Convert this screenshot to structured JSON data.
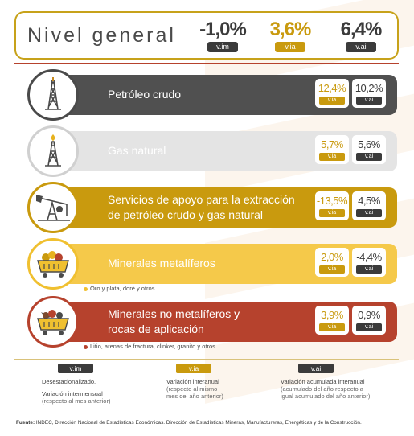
{
  "colors": {
    "vim": "#3b3b3b",
    "via": "#c99a0e",
    "vai": "#3b3b3b",
    "accent_red": "#b6422d",
    "gold": "#c7a21a"
  },
  "header": {
    "title": "Nivel general",
    "metrics": [
      {
        "value": "-1,0%",
        "tag": "v.im",
        "color": "#3b3b3b"
      },
      {
        "value": "3,6%",
        "tag": "v.ia",
        "color": "#c99a0e"
      },
      {
        "value": "6,4%",
        "tag": "v.ai",
        "color": "#3b3b3b"
      }
    ]
  },
  "rows": [
    {
      "label": "Petróleo crudo",
      "icon": "oil-derrick-icon",
      "via": "12,4%",
      "vai": "10,2%",
      "via_tag": "v.ia",
      "vai_tag": "v.ai",
      "note": ""
    },
    {
      "label": "Gas natural",
      "icon": "gas-derrick-icon",
      "via": "5,7%",
      "vai": "5,6%",
      "via_tag": "v.ia",
      "vai_tag": "v.ai",
      "note": ""
    },
    {
      "label": "Servicios de apoyo para la extracción de petróleo crudo y gas natural",
      "label_line1": "Servicios de apoyo para la extracción",
      "label_line2": "de petróleo crudo y gas natural",
      "icon": "pumpjack-icon",
      "via": "-13,5%",
      "vai": "4,5%",
      "via_tag": "v.ia",
      "vai_tag": "v.ai",
      "note": ""
    },
    {
      "label": "Minerales metalíferos",
      "icon": "mine-cart-gold-icon",
      "via": "2,0%",
      "vai": "-4,4%",
      "via_tag": "v.ia",
      "vai_tag": "v.ai",
      "note": "Oro y plata, doré y otros"
    },
    {
      "label": "Minerales no metalíferos y rocas de aplicación",
      "label_line1": "Minerales no metalíferos y",
      "label_line2": "rocas de aplicación",
      "icon": "mine-cart-rocks-icon",
      "via": "3,9%",
      "vai": "0,9%",
      "via_tag": "v.ia",
      "vai_tag": "v.ai",
      "note": "Litio, arenas de fractura, clinker, granito y otros"
    }
  ],
  "legend": [
    {
      "tag": "v.im",
      "title": "Desestacionalizado.",
      "title2": "Variación intermensual",
      "desc": "(respecto al mes anterior)"
    },
    {
      "tag": "v.ia",
      "title": "Variación interanual",
      "desc": "(respecto al mismo",
      "desc2": "mes del año anterior)"
    },
    {
      "tag": "v.ai",
      "title": "Variación acumulada interanual",
      "desc": "(acumulado del año respecto a",
      "desc2": "igual acumulado del año anterior)"
    }
  ],
  "footer": {
    "label": "Fuente:",
    "text": " INDEC, Dirección Nacional de Estadísticas Económicas. Dirección de Estadísticas Mineras, Manufactureras, Energéticas y de la Construcción."
  }
}
